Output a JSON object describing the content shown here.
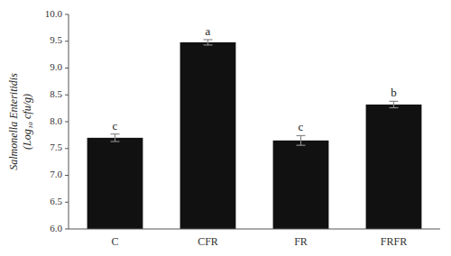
{
  "chart_data": {
    "type": "bar",
    "categories": [
      "C",
      "CFR",
      "FR",
      "FRFR"
    ],
    "values": [
      7.7,
      9.48,
      7.65,
      8.32
    ],
    "errors": [
      0.07,
      0.05,
      0.09,
      0.06
    ],
    "annotations": [
      "c",
      "a",
      "c",
      "b"
    ],
    "color": "#111111",
    "ylabel": [
      "Salmonella Enteritidis",
      "(Log₁₀ cfu/g)"
    ],
    "ylim": [
      6.0,
      10.0
    ],
    "yticks": [
      {
        "value": 6.0,
        "label": "6.0"
      },
      6.5,
      {
        "value": 7.0,
        "label": "7.0"
      },
      7.5,
      {
        "value": 8.0,
        "label": "8.0"
      },
      8.5,
      {
        "value": 9.0,
        "label": "9.0"
      },
      9.5,
      {
        "value": 10.0,
        "label": "10.0"
      }
    ],
    "grid": false
  }
}
